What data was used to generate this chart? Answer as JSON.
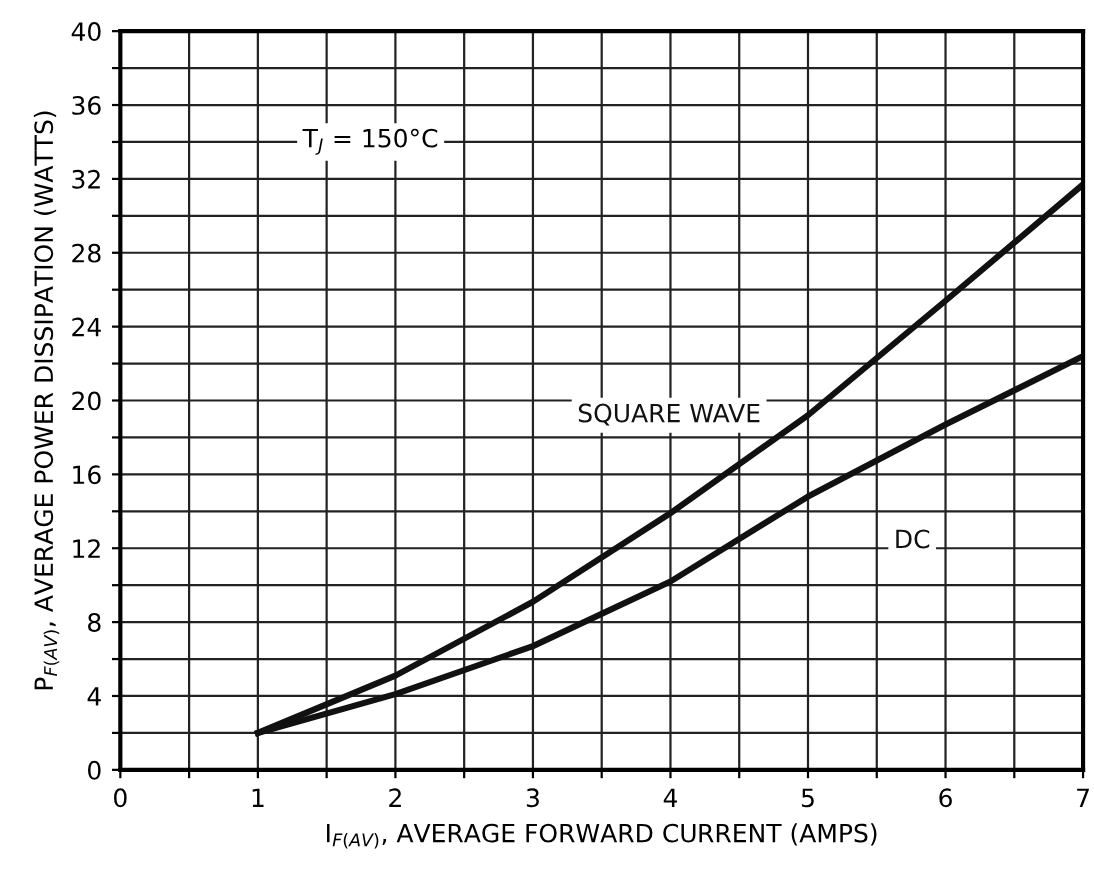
{
  "chart_data": {
    "type": "line",
    "xlabel": "I$_{F(AV)}$, AVERAGE FORWARD CURRENT (AMPS)",
    "ylabel": "P$_{F(AV)}$, AVERAGE POWER DISSIPATION (WATTS)",
    "x": [
      1,
      2,
      3,
      4,
      5,
      6,
      7
    ],
    "series": [
      {
        "name": "SQUARE WAVE",
        "color": "#111111",
        "values": [
          2,
          5.1,
          9.1,
          13.9,
          19.2,
          25.4,
          31.7
        ]
      },
      {
        "name": "DC",
        "color": "#111111",
        "values": [
          2,
          4.1,
          6.7,
          10.2,
          14.8,
          18.7,
          22.4
        ]
      }
    ],
    "xlim": [
      0,
      7
    ],
    "ylim": [
      0,
      40
    ],
    "xticks": [
      0,
      {
        "value": 0.5,
        "label": null
      },
      1,
      {
        "value": 1.5,
        "label": null
      },
      2,
      {
        "value": 2.5,
        "label": null
      },
      3,
      {
        "value": 3.5,
        "label": null
      },
      4,
      {
        "value": 4.5,
        "label": null
      },
      5,
      {
        "value": 5.5,
        "label": null
      },
      6,
      {
        "value": 6.5,
        "label": null
      },
      7
    ],
    "yticks": [
      0,
      {
        "value": 2,
        "label": null
      },
      4,
      {
        "value": 6,
        "label": null
      },
      8,
      {
        "value": 10,
        "label": null
      },
      12,
      {
        "value": 14,
        "label": null
      },
      16,
      {
        "value": 18,
        "label": null
      },
      20,
      {
        "value": 22,
        "label": null
      },
      24,
      {
        "value": 26,
        "label": null
      },
      28,
      {
        "value": 30,
        "label": null
      },
      32,
      {
        "value": 34,
        "label": null
      },
      36,
      {
        "value": 38,
        "label": null
      },
      40
    ],
    "grid": true,
    "annotations": [
      "T$_{J}$ = 150°C"
    ]
  }
}
